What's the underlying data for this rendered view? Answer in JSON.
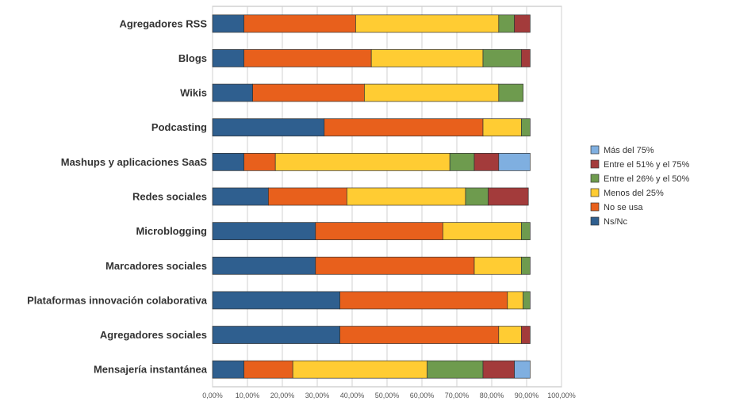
{
  "chart_data": {
    "type": "bar",
    "orientation": "horizontal",
    "stacked": true,
    "title": "",
    "xlabel": "",
    "ylabel": "",
    "xlim": [
      0,
      100
    ],
    "x_ticks": [
      "0,00%",
      "10,00%",
      "20,00%",
      "30,00%",
      "40,00%",
      "50,00%",
      "60,00%",
      "70,00%",
      "80,00%",
      "90,00%",
      "100,00%"
    ],
    "grid": true,
    "legend_position": "right",
    "categories": [
      "Agregadores RSS",
      "Blogs",
      "Wikis",
      "Podcasting",
      "Mashups y aplicaciones SaaS",
      "Redes sociales",
      "Microblogging",
      "Marcadores sociales",
      "Plataformas innovación colaborativa",
      "Agregadores sociales",
      "Mensajería instantánea"
    ],
    "series": [
      {
        "name": "Ns/Nc",
        "color": "#2F5F8F",
        "values": [
          9,
          9,
          11.5,
          32,
          9,
          16,
          29.5,
          29.5,
          36.5,
          36.5,
          9
        ]
      },
      {
        "name": "No se usa",
        "color": "#E8601C",
        "values": [
          32,
          36.5,
          32,
          45.5,
          9,
          22.5,
          36.5,
          45.5,
          48,
          45.5,
          14
        ]
      },
      {
        "name": "Menos del 25%",
        "color": "#FFCC33",
        "values": [
          41,
          32,
          38.5,
          11,
          50,
          34,
          22.5,
          13.5,
          4.5,
          6.5,
          38.5
        ]
      },
      {
        "name": "Entre el 26% y el 50%",
        "color": "#6E9B4E",
        "values": [
          4.5,
          11,
          7,
          2.5,
          7,
          6.5,
          2.5,
          2.5,
          2,
          0,
          16
        ]
      },
      {
        "name": "Entre el 51% y el 75%",
        "color": "#A33B3B",
        "values": [
          4.5,
          2.5,
          0,
          0,
          7,
          11.5,
          0,
          0,
          0,
          2.5,
          9
        ]
      },
      {
        "name": "Más del 75%",
        "color": "#7FAFE0",
        "values": [
          0,
          0,
          0,
          0,
          9,
          0,
          0,
          0,
          0,
          0,
          4.5
        ]
      }
    ],
    "legend_order": [
      "Más del 75%",
      "Entre el 51% y el 75%",
      "Entre el 26% y el 50%",
      "Menos del 25%",
      "No se usa",
      "Ns/Nc"
    ]
  }
}
